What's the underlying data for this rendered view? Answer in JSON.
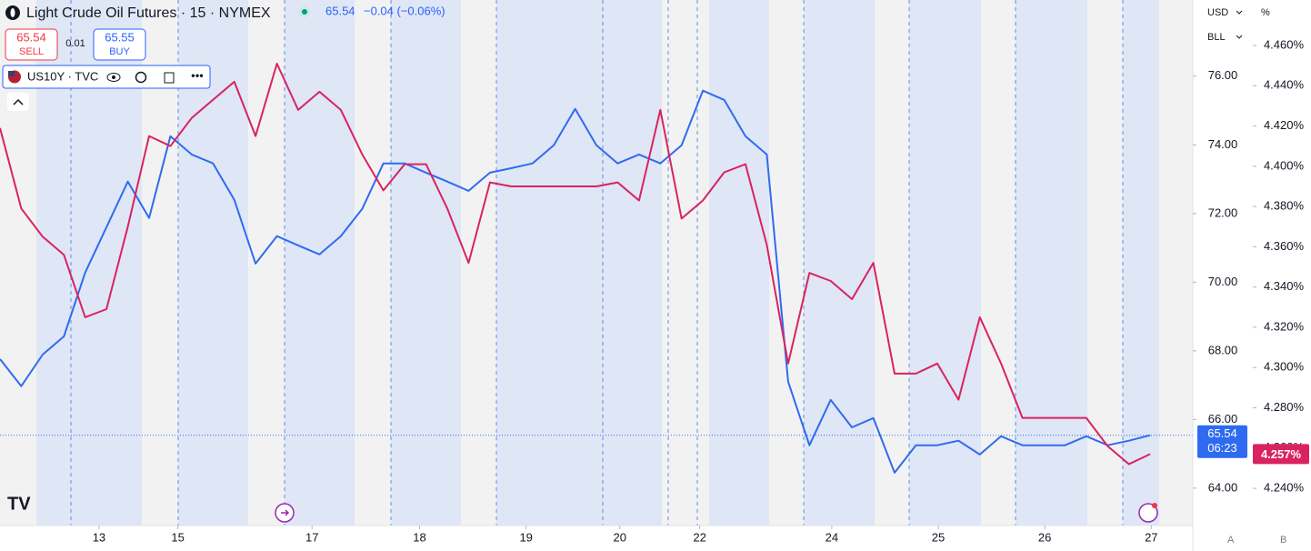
{
  "header": {
    "symbol": "Light Crude Oil Futures · 15 · NYMEX",
    "last": "65.54",
    "change": "−0.04 (−0.06%)",
    "sell_price": "65.54",
    "sell": "SELL",
    "spread": "0.01",
    "buy_price": "65.55",
    "buy": "BUY",
    "overlay": "US10Y · TVC",
    "currency": "USD",
    "unit": "BLL",
    "percent": "%",
    "scale_a": "A",
    "scale_b": "B",
    "price_tag": "65.54",
    "countdown": "06:23",
    "yield_tag": "4.257%"
  },
  "chart_data": {
    "type": "line",
    "x": [
      0,
      0.2,
      0.4,
      0.6,
      0.8,
      1,
      1.2,
      1.4,
      1.6,
      1.8,
      2,
      2.2,
      2.4,
      2.6,
      2.8,
      3,
      3.2,
      3.4,
      3.6,
      3.8,
      4,
      4.2,
      4.4,
      4.6,
      4.8,
      5,
      5.2,
      5.4,
      5.6,
      5.8,
      6,
      6.2,
      6.4,
      6.6,
      6.8,
      7,
      7.2,
      7.4,
      7.6,
      7.8,
      8,
      8.2,
      8.4,
      8.6,
      8.8,
      9,
      9.2,
      9.4,
      9.6,
      9.8,
      10,
      10.2,
      10.4,
      10.6,
      10.8
    ],
    "xlim": [
      0,
      11.2
    ],
    "xticks": [
      {
        "value": 0.93,
        "label": "13"
      },
      {
        "value": 1.67,
        "label": "15"
      },
      {
        "value": 2.93,
        "label": "17"
      },
      {
        "value": 3.94,
        "label": "18"
      },
      {
        "value": 4.94,
        "label": "19"
      },
      {
        "value": 5.82,
        "label": "20"
      },
      {
        "value": 6.57,
        "label": "22"
      },
      {
        "value": 7.81,
        "label": "24"
      },
      {
        "value": 8.81,
        "label": "25"
      },
      {
        "value": 9.81,
        "label": "26"
      },
      {
        "value": 10.81,
        "label": "27"
      }
    ],
    "ylim": [
      62.91,
      78.22
    ],
    "yticks": [
      {
        "value": 64,
        "label": "64.00"
      },
      {
        "value": 66,
        "label": "66.00"
      },
      {
        "value": 68,
        "label": "68.00"
      },
      {
        "value": 70,
        "label": "70.00"
      },
      {
        "value": 72,
        "label": "72.00"
      },
      {
        "value": 74,
        "label": "74.00"
      },
      {
        "value": 76,
        "label": "76.00"
      }
    ],
    "y2lim": [
      4.2215,
      4.4826
    ],
    "y2ticks": [
      {
        "value": 4.24,
        "label": "4.240%"
      },
      {
        "value": 4.26,
        "label": "4.260%"
      },
      {
        "value": 4.28,
        "label": "4.280%"
      },
      {
        "value": 4.3,
        "label": "4.300%"
      },
      {
        "value": 4.32,
        "label": "4.320%"
      },
      {
        "value": 4.34,
        "label": "4.340%"
      },
      {
        "value": 4.36,
        "label": "4.360%"
      },
      {
        "value": 4.38,
        "label": "4.380%"
      },
      {
        "value": 4.4,
        "label": "4.400%"
      },
      {
        "value": 4.42,
        "label": "4.420%"
      },
      {
        "value": 4.44,
        "label": "4.440%"
      },
      {
        "value": 4.46,
        "label": "4.460%"
      }
    ],
    "grid": false,
    "series": [
      {
        "name": "Light Crude Oil Futures",
        "color": "#2f6bf0",
        "values": [
          67.76,
          66.97,
          67.89,
          68.42,
          70.28,
          71.6,
          72.93,
          71.87,
          74.25,
          73.72,
          73.46,
          72.4,
          70.54,
          71.34,
          71.07,
          70.81,
          71.34,
          72.13,
          73.46,
          73.46,
          73.19,
          72.93,
          72.66,
          73.19,
          73.32,
          73.46,
          73.99,
          75.05,
          73.99,
          73.46,
          73.72,
          73.46,
          73.99,
          75.58,
          75.31,
          74.25,
          73.72,
          67.1,
          65.25,
          66.57,
          65.77,
          66.04,
          64.45,
          65.25,
          65.25,
          65.38,
          64.98,
          65.51,
          65.25,
          65.25,
          65.25,
          65.51,
          65.25,
          65.38,
          65.54
        ]
      },
      {
        "name": "US10Y",
        "color": "#d9235f",
        "axis": "y2",
        "values": [
          4.419,
          4.379,
          4.365,
          4.356,
          4.325,
          4.329,
          4.37,
          4.415,
          4.41,
          4.424,
          4.433,
          4.442,
          4.415,
          4.451,
          4.428,
          4.437,
          4.428,
          4.406,
          4.388,
          4.401,
          4.401,
          4.379,
          4.352,
          4.392,
          4.39,
          4.39,
          4.39,
          4.39,
          4.39,
          4.392,
          4.383,
          4.428,
          4.374,
          4.383,
          4.397,
          4.401,
          4.361,
          4.302,
          4.347,
          4.343,
          4.334,
          4.352,
          4.297,
          4.297,
          4.302,
          4.284,
          4.325,
          4.302,
          4.275,
          4.275,
          4.275,
          4.275,
          4.261,
          4.252,
          4.257
        ]
      }
    ]
  }
}
